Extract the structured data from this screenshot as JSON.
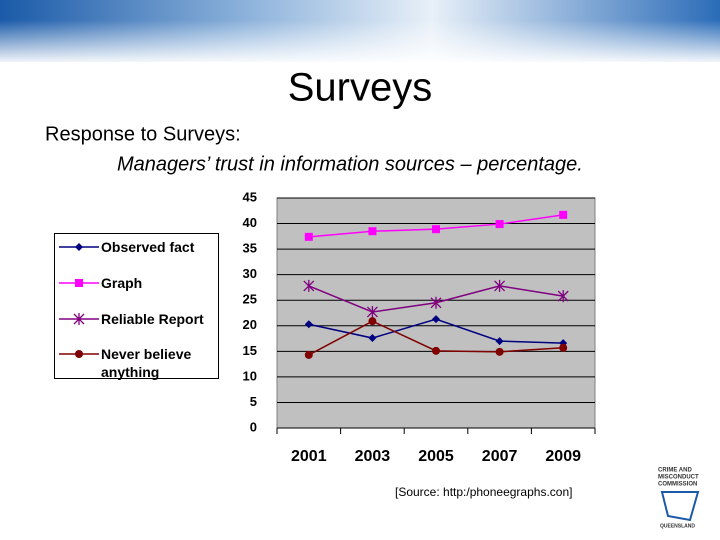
{
  "title": "Surveys",
  "heading": "Response to Surveys:",
  "source": "[Source:  http:/phoneegraphs.con]",
  "logo": {
    "lines": [
      "CRIME AND",
      "MISCONDUCT",
      "COMMISSION"
    ],
    "footer": "QUEENSLAND"
  },
  "chart_data": {
    "type": "line",
    "title": "Managers’ trust in information sources – percentage.",
    "categories": [
      "2001",
      "2003",
      "2005",
      "2007",
      "2009"
    ],
    "series": [
      {
        "name": "Observed fact",
        "color": "#000080",
        "marker": "diamond",
        "values": [
          20.3,
          17.6,
          21.3,
          17.0,
          16.6
        ]
      },
      {
        "name": "Graph",
        "color": "#ff00ff",
        "marker": "square",
        "values": [
          37.4,
          38.5,
          38.9,
          39.9,
          41.7
        ]
      },
      {
        "name": "Reliable Report",
        "color": "#800080",
        "marker": "asterisk",
        "values": [
          27.8,
          22.7,
          24.5,
          27.8,
          25.8
        ]
      },
      {
        "name": "Never believe anything",
        "color": "#800000",
        "marker": "circle",
        "values": [
          14.3,
          20.9,
          15.1,
          14.9,
          15.7
        ]
      }
    ],
    "ylim": [
      0,
      45
    ],
    "yticks": [
      0,
      5,
      10,
      15,
      20,
      25,
      30,
      35,
      40,
      45
    ],
    "grid": true,
    "legend": "left"
  }
}
